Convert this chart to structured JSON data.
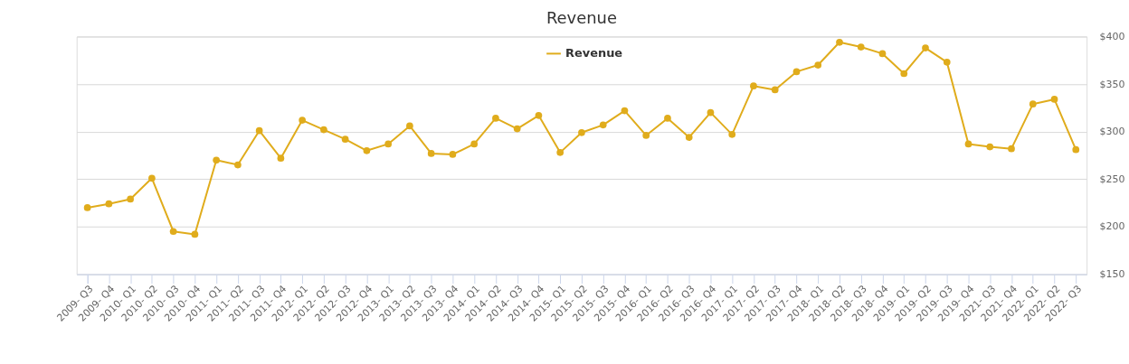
{
  "chart_data": {
    "type": "line",
    "title": "Revenue",
    "categories": [
      "2009- Q3",
      "2009- Q4",
      "2010- Q1",
      "2010- Q2",
      "2010- Q3",
      "2010- Q4",
      "2011- Q1",
      "2011- Q2",
      "2011- Q3",
      "2011- Q4",
      "2012- Q1",
      "2012- Q2",
      "2012- Q3",
      "2012- Q4",
      "2013- Q1",
      "2013- Q2",
      "2013- Q3",
      "2013- Q4",
      "2014- Q1",
      "2014- Q2",
      "2014- Q3",
      "2014- Q4",
      "2015- Q1",
      "2015- Q2",
      "2015- Q3",
      "2015- Q4",
      "2016- Q1",
      "2016- Q2",
      "2016- Q3",
      "2016- Q4",
      "2017- Q1",
      "2017- Q2",
      "2017- Q3",
      "2017- Q4",
      "2018- Q1",
      "2018- Q2",
      "2018- Q3",
      "2018- Q4",
      "2019- Q1",
      "2019- Q2",
      "2019- Q3",
      "2019- Q4",
      "2021- Q3",
      "2021- Q4",
      "2022- Q1",
      "2022- Q2",
      "2022- Q3"
    ],
    "series": [
      {
        "name": "Revenue",
        "color": "#e0ac1c",
        "values": [
          220,
          224,
          229,
          251,
          195,
          192,
          270,
          265,
          301,
          272,
          312,
          302,
          292,
          280,
          287,
          306,
          277,
          276,
          287,
          314,
          303,
          317,
          278,
          299,
          307,
          322,
          296,
          314,
          294,
          320,
          297,
          348,
          344,
          363,
          370,
          394,
          389,
          382,
          361,
          388,
          373,
          287,
          284,
          282,
          329,
          334,
          281
        ]
      }
    ],
    "ylim": [
      150,
      400
    ],
    "yticks": [
      {
        "value": 150,
        "label": "$150"
      },
      {
        "value": 200,
        "label": "$200"
      },
      {
        "value": 250,
        "label": "$250"
      },
      {
        "value": 300,
        "label": "$300"
      },
      {
        "value": 350,
        "label": "$350"
      },
      {
        "value": 400,
        "label": "$400"
      }
    ],
    "grid": "y",
    "legend": "top",
    "marker": "circle",
    "line_style": "solid"
  }
}
